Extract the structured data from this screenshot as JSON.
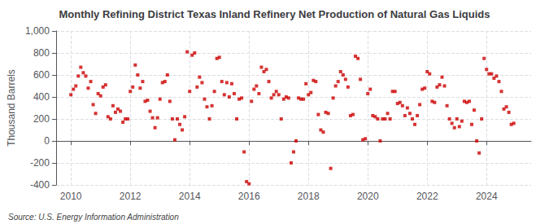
{
  "chart_data": {
    "type": "scatter",
    "title": "Monthly Refining District Texas Inland Refinery Net Production of Natural Gas Liquids",
    "ylabel": "Thousand Barrels",
    "annotations": [
      "Source: U.S. Energy Information Administration"
    ],
    "color": "#cc0000",
    "marker": "square",
    "grid": true,
    "xlim": [
      2009.5,
      2025.5
    ],
    "xticks": [
      2010,
      2012,
      2014,
      2016,
      2018,
      2020,
      2022,
      2024
    ],
    "ylim": [
      -400,
      1000
    ],
    "yticks": [
      -400,
      -200,
      0,
      200,
      400,
      600,
      800,
      {
        "value": 1000,
        "label": "1,000"
      }
    ],
    "x": [
      2010.0,
      2010.083,
      2010.167,
      2010.25,
      2010.333,
      2010.417,
      2010.5,
      2010.583,
      2010.667,
      2010.75,
      2010.833,
      2010.917,
      2011.0,
      2011.083,
      2011.167,
      2011.25,
      2011.333,
      2011.417,
      2011.5,
      2011.583,
      2011.667,
      2011.75,
      2011.833,
      2011.917,
      2012.0,
      2012.083,
      2012.167,
      2012.25,
      2012.333,
      2012.417,
      2012.5,
      2012.583,
      2012.667,
      2012.75,
      2012.833,
      2012.917,
      2013.0,
      2013.083,
      2013.167,
      2013.25,
      2013.333,
      2013.417,
      2013.5,
      2013.583,
      2013.667,
      2013.75,
      2013.833,
      2013.917,
      2014.0,
      2014.083,
      2014.167,
      2014.25,
      2014.333,
      2014.417,
      2014.5,
      2014.583,
      2014.667,
      2014.75,
      2014.833,
      2014.917,
      2015.0,
      2015.083,
      2015.167,
      2015.25,
      2015.333,
      2015.417,
      2015.5,
      2015.583,
      2015.667,
      2015.75,
      2015.833,
      2015.917,
      2016.0,
      2016.083,
      2016.167,
      2016.25,
      2016.333,
      2016.417,
      2016.5,
      2016.583,
      2016.667,
      2016.75,
      2016.833,
      2016.917,
      2017.0,
      2017.083,
      2017.167,
      2017.25,
      2017.333,
      2017.417,
      2017.5,
      2017.583,
      2017.667,
      2017.75,
      2017.833,
      2017.917,
      2018.0,
      2018.083,
      2018.167,
      2018.25,
      2018.333,
      2018.417,
      2018.5,
      2018.583,
      2018.667,
      2018.75,
      2018.833,
      2018.917,
      2019.0,
      2019.083,
      2019.167,
      2019.25,
      2019.333,
      2019.417,
      2019.5,
      2019.583,
      2019.667,
      2019.75,
      2019.833,
      2019.917,
      2020.0,
      2020.083,
      2020.167,
      2020.25,
      2020.333,
      2020.417,
      2020.5,
      2020.583,
      2020.667,
      2020.75,
      2020.833,
      2020.917,
      2021.0,
      2021.083,
      2021.167,
      2021.25,
      2021.333,
      2021.417,
      2021.5,
      2021.583,
      2021.667,
      2021.75,
      2021.833,
      2021.917,
      2022.0,
      2022.083,
      2022.167,
      2022.25,
      2022.333,
      2022.417,
      2022.5,
      2022.583,
      2022.667,
      2022.75,
      2022.833,
      2022.917,
      2023.0,
      2023.083,
      2023.167,
      2023.25,
      2023.333,
      2023.417,
      2023.5,
      2023.583,
      2023.667,
      2023.75,
      2023.833,
      2023.917,
      2024.0,
      2024.083,
      2024.167,
      2024.25,
      2024.333,
      2024.417,
      2024.5,
      2024.583,
      2024.667,
      2024.75,
      2024.833,
      2024.917
    ],
    "values": [
      420,
      470,
      500,
      590,
      670,
      620,
      590,
      480,
      540,
      330,
      250,
      430,
      410,
      490,
      510,
      220,
      200,
      320,
      260,
      290,
      270,
      170,
      200,
      200,
      450,
      490,
      690,
      600,
      480,
      540,
      360,
      370,
      270,
      210,
      120,
      210,
      380,
      530,
      540,
      600,
      360,
      200,
      10,
      200,
      150,
      100,
      220,
      810,
      450,
      780,
      800,
      490,
      580,
      530,
      380,
      310,
      200,
      320,
      450,
      750,
      760,
      540,
      420,
      530,
      400,
      520,
      430,
      200,
      380,
      390,
      -100,
      -370,
      -390,
      360,
      470,
      500,
      430,
      670,
      630,
      650,
      540,
      390,
      420,
      450,
      420,
      200,
      380,
      400,
      390,
      -200,
      -100,
      0,
      390,
      380,
      380,
      520,
      420,
      440,
      550,
      540,
      240,
      100,
      80,
      260,
      250,
      -250,
      390,
      500,
      540,
      630,
      600,
      560,
      490,
      230,
      240,
      770,
      750,
      560,
      10,
      20,
      430,
      470,
      230,
      220,
      200,
      0,
      200,
      200,
      250,
      200,
      450,
      450,
      340,
      350,
      320,
      230,
      300,
      250,
      200,
      150,
      230,
      330,
      470,
      480,
      630,
      610,
      360,
      350,
      490,
      510,
      580,
      500,
      320,
      200,
      160,
      120,
      200,
      130,
      180,
      360,
      350,
      360,
      150,
      280,
      0,
      -110,
      200,
      750,
      650,
      610,
      610,
      570,
      590,
      540,
      450,
      290,
      310,
      260,
      150,
      160
    ]
  }
}
